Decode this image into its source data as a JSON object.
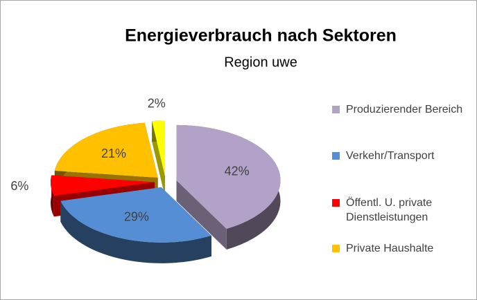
{
  "chart_data": {
    "type": "pie",
    "title": "Energieverbrauch nach Sektoren",
    "subtitle": "Region uwe",
    "categories": [
      "Produzierender Bereich",
      "Verkehr/Transport",
      "Öffentl. U. private Dienstleistungen",
      "Private Haushalte",
      null
    ],
    "values": [
      42,
      29,
      6,
      21,
      2
    ],
    "value_labels": [
      "42%",
      "29%",
      "6%",
      "21%",
      "2%"
    ],
    "colors": [
      "#b3a2c7",
      "#558ed5",
      "#ff0000",
      "#ffc000",
      "#ffff00"
    ],
    "legend": "right"
  }
}
